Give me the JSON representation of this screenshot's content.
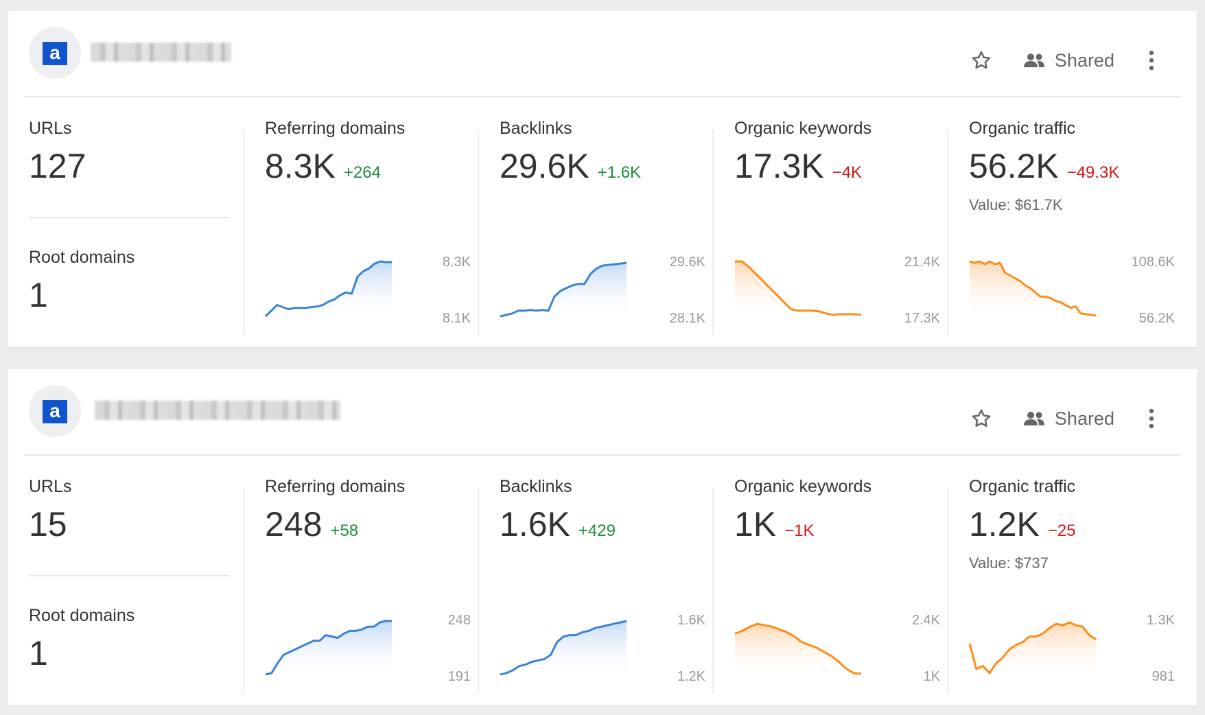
{
  "colors": {
    "up": "#1a8f3c",
    "down": "#d01818",
    "blue_line": "#3b82d6",
    "orange_line": "#ff8c1a"
  },
  "icons": {
    "logo": "ahrefs-logo-icon",
    "star": "star-outline-icon",
    "shared": "people-icon",
    "more": "vertical-dots-icon"
  },
  "projects": [
    {
      "logo_letter": "a",
      "shared_label": "Shared",
      "urls": {
        "label": "URLs",
        "value": "127"
      },
      "root_domains": {
        "label": "Root domains",
        "value": "1"
      },
      "metrics": [
        {
          "label": "Referring domains",
          "value": "8.3K",
          "delta": "+264",
          "trend": "up",
          "axis_top": "8.3K",
          "axis_bottom": "8.1K",
          "color": "blue",
          "series": [
            2,
            10,
            18,
            15,
            12,
            14,
            14,
            14,
            15,
            16,
            18,
            23,
            26,
            32,
            36,
            34,
            58,
            66,
            70,
            77,
            80,
            79,
            79
          ]
        },
        {
          "label": "Backlinks",
          "value": "29.6K",
          "delta": "+1.6K",
          "trend": "up",
          "axis_top": "29.6K",
          "axis_bottom": "28.1K",
          "color": "blue",
          "series": [
            2,
            4,
            6,
            10,
            10,
            11,
            10,
            11,
            10,
            30,
            38,
            42,
            46,
            48,
            48,
            62,
            70,
            74,
            75,
            76,
            77,
            78
          ]
        },
        {
          "label": "Organic keywords",
          "value": "17.3K",
          "delta": "−4K",
          "trend": "down",
          "axis_top": "21.4K",
          "axis_bottom": "17.3K",
          "color": "orange",
          "series": [
            80,
            80,
            72,
            62,
            52,
            42,
            32,
            22,
            12,
            10,
            10,
            10,
            9,
            6,
            4,
            5,
            5,
            5,
            4
          ]
        },
        {
          "label": "Organic traffic",
          "value": "56.2K",
          "delta": "−49.3K",
          "trend": "down",
          "axis_top": "108.6K",
          "axis_bottom": "56.2K",
          "value_line": "Value: $61.7K",
          "color": "orange",
          "series": [
            80,
            78,
            80,
            76,
            80,
            76,
            78,
            64,
            60,
            56,
            52,
            46,
            42,
            36,
            30,
            30,
            28,
            24,
            22,
            18,
            14,
            16,
            6,
            5,
            4,
            3
          ]
        }
      ]
    },
    {
      "logo_letter": "a",
      "shared_label": "Shared",
      "urls": {
        "label": "URLs",
        "value": "15"
      },
      "root_domains": {
        "label": "Root domains",
        "value": "1"
      },
      "metrics": [
        {
          "label": "Referring domains",
          "value": "248",
          "delta": "+58",
          "trend": "up",
          "axis_top": "248",
          "axis_bottom": "191",
          "color": "blue",
          "series": [
            2,
            4,
            18,
            30,
            34,
            38,
            42,
            46,
            50,
            50,
            58,
            56,
            54,
            60,
            64,
            64,
            66,
            70,
            70,
            76,
            78,
            78
          ]
        },
        {
          "label": "Backlinks",
          "value": "1.6K",
          "delta": "+429",
          "trend": "up",
          "axis_top": "1.6K",
          "axis_bottom": "1.2K",
          "color": "blue",
          "series": [
            2,
            4,
            8,
            14,
            16,
            20,
            22,
            24,
            30,
            48,
            56,
            58,
            58,
            62,
            64,
            68,
            70,
            72,
            74,
            76,
            78
          ]
        },
        {
          "label": "Organic keywords",
          "value": "1K",
          "delta": "−1K",
          "trend": "down",
          "axis_top": "2.4K",
          "axis_bottom": "1K",
          "color": "orange",
          "series": [
            60,
            64,
            70,
            74,
            72,
            70,
            66,
            62,
            56,
            48,
            44,
            40,
            34,
            28,
            20,
            10,
            4,
            3
          ]
        },
        {
          "label": "Organic traffic",
          "value": "1.2K",
          "delta": "−25",
          "trend": "down",
          "axis_top": "1.3K",
          "axis_bottom": "981",
          "value_line": "Value: $737",
          "color": "orange",
          "series": [
            46,
            10,
            14,
            4,
            18,
            26,
            38,
            44,
            48,
            56,
            56,
            60,
            68,
            74,
            72,
            76,
            72,
            70,
            58,
            52
          ]
        }
      ]
    }
  ]
}
